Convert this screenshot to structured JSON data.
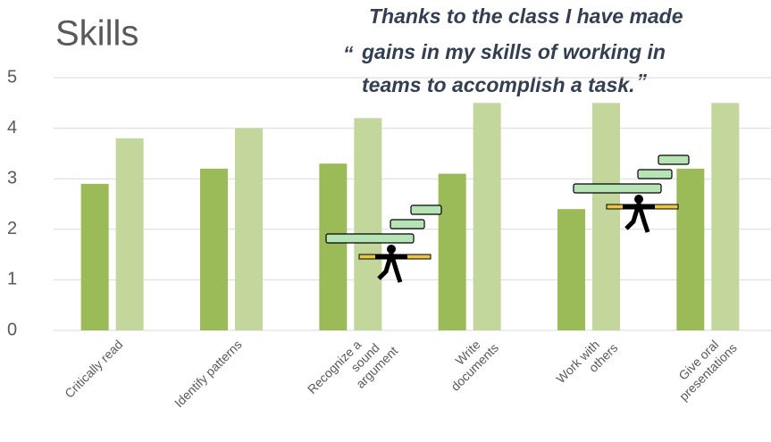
{
  "chart_data": {
    "type": "bar",
    "title": "Skills",
    "quote_lines": [
      "Thanks to the class I have made",
      "gains in my skills of working in",
      "teams to accomplish a task."
    ],
    "quote_open": "“",
    "quote_close": "”",
    "categories": [
      "Critically read",
      "Identify patterns",
      "Recognize a\nsound\nargument",
      "Write\ndocuments",
      "Work with\nothers",
      "Give oral\npresentations"
    ],
    "series": [
      {
        "color": "#9bbb59",
        "values": [
          2.9,
          3.2,
          3.3,
          3.1,
          2.4,
          3.2
        ]
      },
      {
        "color": "#c3d69b",
        "values": [
          3.8,
          4.0,
          4.2,
          4.5,
          4.5,
          4.5
        ]
      }
    ],
    "ylim": [
      0,
      5
    ],
    "yticks": [
      0,
      1,
      2,
      3,
      4,
      5
    ],
    "grid": true
  }
}
